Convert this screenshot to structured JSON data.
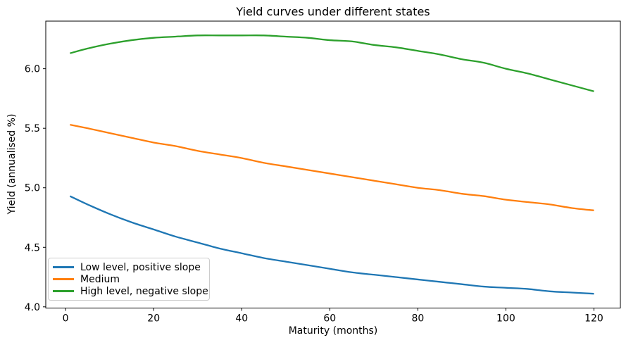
{
  "chart_data": {
    "type": "line",
    "title": "Yield curves under different states",
    "xlabel": "Maturity (months)",
    "ylabel": "Yield (annualised %)",
    "xlim": [
      -4.5,
      126
    ],
    "ylim": [
      3.99,
      6.4
    ],
    "x_ticks": [
      0,
      20,
      40,
      60,
      80,
      100,
      120
    ],
    "y_ticks": [
      4.0,
      4.5,
      5.0,
      5.5,
      6.0
    ],
    "grid": false,
    "legend_position": "lower left",
    "x": [
      1,
      5,
      10,
      15,
      20,
      25,
      30,
      35,
      40,
      45,
      50,
      55,
      60,
      65,
      70,
      75,
      80,
      85,
      90,
      95,
      100,
      105,
      110,
      115,
      120
    ],
    "series": [
      {
        "name": "Low level, positive slope",
        "color": "#1f77b4",
        "values": [
          4.93,
          4.86,
          4.78,
          4.71,
          4.65,
          4.59,
          4.54,
          4.49,
          4.45,
          4.41,
          4.38,
          4.35,
          4.32,
          4.29,
          4.27,
          4.25,
          4.23,
          4.21,
          4.19,
          4.17,
          4.16,
          4.15,
          4.13,
          4.12,
          4.11
        ]
      },
      {
        "name": "Medium",
        "color": "#ff7f0e",
        "values": [
          5.53,
          5.5,
          5.46,
          5.42,
          5.38,
          5.35,
          5.31,
          5.28,
          5.25,
          5.21,
          5.18,
          5.15,
          5.12,
          5.09,
          5.06,
          5.03,
          5.0,
          4.98,
          4.95,
          4.93,
          4.9,
          4.88,
          4.86,
          4.83,
          4.81
        ]
      },
      {
        "name": "High level, negative slope",
        "color": "#2ca02c",
        "values": [
          6.13,
          6.17,
          6.21,
          6.24,
          6.26,
          6.27,
          6.28,
          6.28,
          6.28,
          6.28,
          6.27,
          6.26,
          6.24,
          6.23,
          6.2,
          6.18,
          6.15,
          6.12,
          6.08,
          6.05,
          6.0,
          5.96,
          5.91,
          5.86,
          5.81
        ]
      }
    ]
  }
}
